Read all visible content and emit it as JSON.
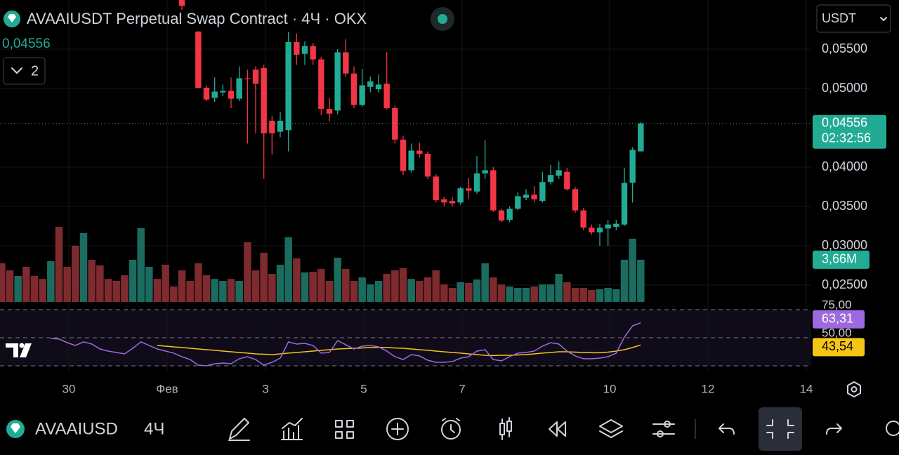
{
  "header": {
    "title": "AVAAIUSDT Perpetual Swap Contract · 4Ч · OKX",
    "indicators_count": 2,
    "currency": "USDT"
  },
  "toolbar": {
    "symbol": "AVAAIUSD",
    "interval": "4Ч"
  },
  "chart_data": {
    "type": "candlestick",
    "up_color": "#22ab94",
    "down_color": "#f23645",
    "x": [
      0.2,
      1.2,
      2.2,
      3.2,
      4.2,
      5.2,
      6.2,
      7.2,
      8.2,
      9.2,
      10.2,
      11.2,
      12.2,
      13.2,
      14.2,
      15.2,
      16.2,
      17.2,
      18.2,
      19.2,
      20.2,
      21.2,
      22.2,
      23.2,
      24.2,
      25.2,
      26.2,
      27.2,
      28.2,
      29.2,
      30.2,
      31.2,
      32.2,
      33.2,
      34.2,
      35.2,
      36.2,
      37.2,
      38.2,
      39.2,
      40.2,
      41.2,
      42.2,
      43.2,
      44.2,
      45.2,
      46.2,
      47.2,
      48.2,
      49.2,
      50.2,
      51.2,
      52.2,
      53.2,
      54.2,
      55.2,
      56.2,
      57.2,
      58.2,
      59.2,
      60.2,
      61.2,
      62.2,
      63.2,
      64.2,
      65.2,
      66.2,
      67.2,
      68.2,
      69.2,
      70.2,
      71.2,
      72.2,
      73.2,
      74.2,
      75.2,
      76.2,
      77.2,
      78.2
    ],
    "xlim": [
      0,
      99
    ],
    "xticks": [
      {
        "value": 8.4,
        "label": "30"
      },
      {
        "value": 20.4,
        "label": "Фев"
      },
      {
        "value": 32.4,
        "label": "3"
      },
      {
        "value": 44.4,
        "label": "5"
      },
      {
        "value": 56.4,
        "label": "7"
      },
      {
        "value": 74.4,
        "label": "10"
      },
      {
        "value": 86.4,
        "label": "12"
      },
      {
        "value": 98.4,
        "label": "14"
      }
    ],
    "ylim": [
      0.02268,
      0.06125
    ],
    "yticks": [
      {
        "value": 0.055,
        "label": "0,05500"
      },
      {
        "value": 0.05,
        "label": "0,05000"
      },
      {
        "value": 0.04,
        "label": "0,04000"
      },
      {
        "value": 0.035,
        "label": "0,03500"
      },
      {
        "value": 0.03,
        "label": "0,03000"
      },
      {
        "value": 0.025,
        "label": "0,02500"
      }
    ],
    "grid": true,
    "open": [
      null,
      null,
      null,
      null,
      null,
      null,
      null,
      null,
      null,
      null,
      null,
      null,
      null,
      null,
      null,
      null,
      null,
      null,
      null,
      null,
      null,
      null,
      0.0625,
      null,
      0.05723,
      0.0501,
      0.0488,
      0.0495,
      0.0497,
      0.0487,
      0.0513,
      0.0524,
      0.0526,
      0.0459,
      0.0445,
      0.0447,
      0.0559,
      0.0544,
      0.0554,
      0.0537,
      0.0474,
      0.0472,
      0.0546,
      0.0519,
      0.0479,
      0.0502,
      0.0499,
      0.0506,
      0.0475,
      0.0435,
      0.0396,
      0.0421,
      0.0417,
      0.0388,
      0.0359,
      0.0357,
      0.0355,
      0.0373,
      0.0369,
      0.0392,
      0.0396,
      0.0345,
      0.0333,
      0.0347,
      0.0361,
      0.0365,
      0.0357,
      0.0381,
      0.0389,
      0.0394,
      0.0372,
      0.0345,
      0.0323,
      0.0317,
      0.0322,
      0.0324,
      0.0327,
      0.038,
      0.042
    ],
    "high": [
      null,
      null,
      null,
      null,
      null,
      null,
      null,
      null,
      null,
      null,
      null,
      null,
      null,
      null,
      null,
      null,
      null,
      null,
      null,
      null,
      null,
      null,
      0.063,
      null,
      0.0573,
      0.0504,
      0.0514,
      0.0505,
      0.0514,
      0.0528,
      0.0524,
      0.0528,
      0.053,
      0.0465,
      0.047,
      0.0572,
      0.057,
      0.056,
      0.0558,
      0.054,
      0.0488,
      0.055,
      0.0563,
      0.0528,
      0.0525,
      0.0515,
      0.0518,
      0.0546,
      0.0478,
      0.044,
      0.043,
      0.0431,
      0.042,
      0.0391,
      0.0362,
      0.0362,
      0.0375,
      0.0386,
      0.0414,
      0.0434,
      0.04,
      0.0347,
      0.035,
      0.0368,
      0.0372,
      0.0376,
      0.0394,
      0.0403,
      0.0407,
      0.0399,
      0.0375,
      0.0348,
      0.0327,
      0.0328,
      0.0333,
      0.0333,
      0.0399,
      0.0425,
      0.0457
    ],
    "low": [
      null,
      null,
      null,
      null,
      null,
      null,
      null,
      null,
      null,
      null,
      null,
      null,
      null,
      null,
      null,
      null,
      null,
      null,
      null,
      null,
      null,
      null,
      0.06,
      null,
      0.05,
      0.0484,
      0.0483,
      0.049,
      0.0475,
      0.0484,
      0.043,
      0.0443,
      0.0385,
      0.0416,
      0.0438,
      0.042,
      0.053,
      0.053,
      0.053,
      0.0466,
      0.0458,
      0.0467,
      0.0515,
      0.0475,
      0.0477,
      0.0495,
      0.0495,
      0.0473,
      0.043,
      0.039,
      0.0393,
      0.0412,
      0.0385,
      0.0355,
      0.035,
      0.035,
      0.0352,
      0.036,
      0.0366,
      0.0385,
      0.0343,
      0.033,
      0.033,
      0.0345,
      0.0358,
      0.0355,
      0.0355,
      0.0378,
      0.0385,
      0.037,
      0.0342,
      0.032,
      0.0314,
      0.03,
      0.03,
      0.032,
      0.0325,
      0.0355,
      0.042
    ],
    "close": [
      null,
      null,
      null,
      null,
      null,
      null,
      null,
      null,
      null,
      null,
      null,
      null,
      null,
      null,
      null,
      null,
      null,
      null,
      null,
      null,
      null,
      null,
      0.0605,
      null,
      0.05009,
      0.0486,
      0.0496,
      0.0497,
      0.0487,
      0.0513,
      0.0512,
      0.0506,
      0.0443,
      0.0443,
      0.0459,
      0.0559,
      0.0543,
      0.0554,
      0.0537,
      0.0474,
      0.0468,
      0.0546,
      0.0519,
      0.0479,
      0.0504,
      0.0509,
      0.0505,
      0.0475,
      0.0435,
      0.0395,
      0.0421,
      0.0417,
      0.0388,
      0.0358,
      0.0355,
      0.0354,
      0.0373,
      0.037,
      0.0392,
      0.0396,
      0.0345,
      0.0332,
      0.0347,
      0.0363,
      0.0365,
      0.0359,
      0.0381,
      0.039,
      0.0396,
      0.0372,
      0.0345,
      0.0323,
      0.0317,
      0.0323,
      0.0327,
      0.0328,
      0.038,
      0.0422,
      0.04556
    ],
    "last_price": {
      "value": 0.04556,
      "label": "0,04556",
      "countdown": "02:32:56",
      "color": "#22ab94"
    },
    "volume": {
      "ylim": [
        0,
        26.2
      ],
      "values": [
        3.35,
        2.74,
        2.26,
        3.05,
        2.26,
        2.0,
        3.54,
        6.52,
        3.05,
        4.88,
        5.98,
        3.66,
        3.17,
        2.0,
        1.83,
        2.32,
        3.66,
        6.4,
        3.05,
        2.0,
        3.23,
        1.34,
        2.74,
        1.83,
        3.35,
        2.32,
        2.0,
        1.83,
        2.0,
        1.83,
        5.18,
        2.74,
        4.27,
        2.44,
        3.23,
        5.61,
        3.78,
        2.56,
        2.62,
        2.87,
        1.83,
        3.84,
        2.87,
        1.83,
        2.13,
        1.52,
        1.83,
        2.44,
        2.74,
        2.93,
        2.0,
        1.83,
        2.13,
        2.74,
        1.52,
        1.22,
        1.71,
        1.65,
        1.95,
        3.35,
        2.13,
        1.52,
        1.34,
        1.22,
        1.22,
        1.34,
        1.52,
        1.52,
        2.44,
        1.71,
        1.22,
        1.22,
        1.04,
        1.1,
        1.22,
        1.1,
        3.66,
        5.49,
        3.66
      ],
      "colors": [
        "#7f2a2e",
        "#7f2a2e",
        "#1b6b5f",
        "#7f2a2e",
        "#7f2a2e",
        "#7f2a2e",
        "#1b6b5f",
        "#7f2a2e",
        "#7f2a2e",
        "#7f2a2e",
        "#1b6b5f",
        "#7f2a2e",
        "#7f2a2e",
        "#7f2a2e",
        "#7f2a2e",
        "#7f2a2e",
        "#1b6b5f",
        "#1b6b5f",
        "#1b6b5f",
        "#7f2a2e",
        "#7f2a2e",
        "#7f2a2e",
        "#7f2a2e",
        "#7f2a2e",
        "#7f2a2e",
        "#7f2a2e",
        "#1b6b5f",
        "#1b6b5f",
        "#7f2a2e",
        "#1b6b5f",
        "#7f2a2e",
        "#7f2a2e",
        "#7f2a2e",
        "#7f2a2e",
        "#1b6b5f",
        "#1b6b5f",
        "#7f2a2e",
        "#1b6b5f",
        "#7f2a2e",
        "#7f2a2e",
        "#7f2a2e",
        "#1b6b5f",
        "#7f2a2e",
        "#7f2a2e",
        "#1b6b5f",
        "#1b6b5f",
        "#1b6b5f",
        "#7f2a2e",
        "#7f2a2e",
        "#7f2a2e",
        "#1b6b5f",
        "#7f2a2e",
        "#7f2a2e",
        "#7f2a2e",
        "#7f2a2e",
        "#7f2a2e",
        "#1b6b5f",
        "#7f2a2e",
        "#1b6b5f",
        "#1b6b5f",
        "#7f2a2e",
        "#7f2a2e",
        "#1b6b5f",
        "#1b6b5f",
        "#1b6b5f",
        "#7f2a2e",
        "#1b6b5f",
        "#1b6b5f",
        "#1b6b5f",
        "#7f2a2e",
        "#7f2a2e",
        "#7f2a2e",
        "#7f2a2e",
        "#1b6b5f",
        "#1b6b5f",
        "#1b6b5f",
        "#1b6b5f",
        "#1b6b5f",
        "#1b6b5f"
      ],
      "value_labels": [
        null,
        null,
        null,
        null,
        null,
        null,
        null,
        null,
        null,
        null,
        null,
        null,
        null,
        null,
        null,
        null,
        null,
        null,
        null,
        null,
        null,
        null,
        null,
        null,
        null,
        null,
        null,
        null,
        null,
        null,
        null,
        null,
        null,
        null,
        null,
        null,
        null,
        null,
        null,
        null,
        null,
        null,
        null,
        null,
        null,
        null,
        null,
        null,
        null,
        null,
        null,
        null,
        null,
        null,
        null,
        null,
        null,
        null,
        null,
        null,
        null,
        null,
        null,
        null,
        null,
        null,
        null,
        null,
        null,
        null,
        null,
        null,
        null,
        null,
        null,
        null,
        null,
        null,
        "3,66M"
      ],
      "label_color": "#22ab94"
    },
    "rsi": {
      "ylim": [
        25,
        75
      ],
      "yticks": [
        {
          "value": 75,
          "label": "75,00"
        },
        {
          "value": 50,
          "label": "50,00"
        }
      ],
      "bands": [
        75,
        50,
        25
      ],
      "color": "#9c6ade",
      "ma_color": "#f5c518",
      "values": [
        null,
        null,
        null,
        null,
        null,
        null,
        49.4,
        48.8,
        45.6,
        43.1,
        46.3,
        44.4,
        40,
        38.1,
        36.9,
        35.6,
        40.6,
        46.3,
        43.1,
        40,
        38.1,
        36.3,
        33.1,
        30.6,
        25.6,
        25,
        26.9,
        27.5,
        26.9,
        31.3,
        33.1,
        30.6,
        25.6,
        28.1,
        31.9,
        46.3,
        44.4,
        45,
        43.1,
        36.3,
        36.9,
        47.5,
        43.8,
        40,
        42.5,
        43.1,
        41.9,
        38.1,
        33.1,
        30.6,
        35,
        33.8,
        30,
        28.1,
        28.1,
        28.8,
        31.9,
        33.1,
        38.1,
        39.4,
        30.6,
        29.4,
        33.1,
        36.3,
        36.9,
        38.1,
        42.5,
        45.6,
        44.4,
        38.1,
        33.8,
        31.3,
        31.3,
        31.9,
        33.1,
        36.3,
        50.6,
        60.6,
        63.31
      ],
      "ma": [
        null,
        null,
        null,
        null,
        null,
        null,
        null,
        null,
        null,
        null,
        null,
        null,
        null,
        null,
        null,
        null,
        null,
        null,
        null,
        43.1,
        42.5,
        41.9,
        41.3,
        40.6,
        40,
        39.4,
        38.8,
        38.1,
        37.5,
        36.9,
        36.3,
        35.6,
        35.3,
        35,
        35.6,
        36.3,
        36.9,
        37.5,
        38.1,
        38.8,
        39.4,
        40,
        40.3,
        40.6,
        40.9,
        41.3,
        41.3,
        41.3,
        40.9,
        40.6,
        40,
        39.4,
        38.8,
        38.1,
        37.5,
        36.9,
        36.3,
        35.6,
        35,
        34.4,
        34.1,
        34.4,
        34.4,
        34.7,
        35,
        35.6,
        36.3,
        36.9,
        37.5,
        37.5,
        37.2,
        36.9,
        36.6,
        36.6,
        37.2,
        38.1,
        39.4,
        41.3,
        43.54
      ],
      "value_labels": [
        null,
        null,
        null,
        null,
        null,
        null,
        null,
        null,
        null,
        null,
        null,
        null,
        null,
        null,
        null,
        null,
        null,
        null,
        null,
        null,
        null,
        null,
        null,
        null,
        null,
        null,
        null,
        null,
        null,
        null,
        null,
        null,
        null,
        null,
        null,
        null,
        null,
        null,
        null,
        null,
        null,
        null,
        null,
        null,
        null,
        null,
        null,
        null,
        null,
        null,
        null,
        null,
        null,
        null,
        null,
        null,
        null,
        null,
        null,
        null,
        null,
        null,
        null,
        null,
        null,
        null,
        null,
        null,
        null,
        null,
        null,
        null,
        null,
        null,
        null,
        null,
        null,
        null,
        "63,31"
      ],
      "ma_value_labels": [
        null,
        null,
        null,
        null,
        null,
        null,
        null,
        null,
        null,
        null,
        null,
        null,
        null,
        null,
        null,
        null,
        null,
        null,
        null,
        null,
        null,
        null,
        null,
        null,
        null,
        null,
        null,
        null,
        null,
        null,
        null,
        null,
        null,
        null,
        null,
        null,
        null,
        null,
        null,
        null,
        null,
        null,
        null,
        null,
        null,
        null,
        null,
        null,
        null,
        null,
        null,
        null,
        null,
        null,
        null,
        null,
        null,
        null,
        null,
        null,
        null,
        null,
        null,
        null,
        null,
        null,
        null,
        null,
        null,
        null,
        null,
        null,
        null,
        null,
        null,
        null,
        null,
        null,
        "43,54"
      ]
    }
  }
}
